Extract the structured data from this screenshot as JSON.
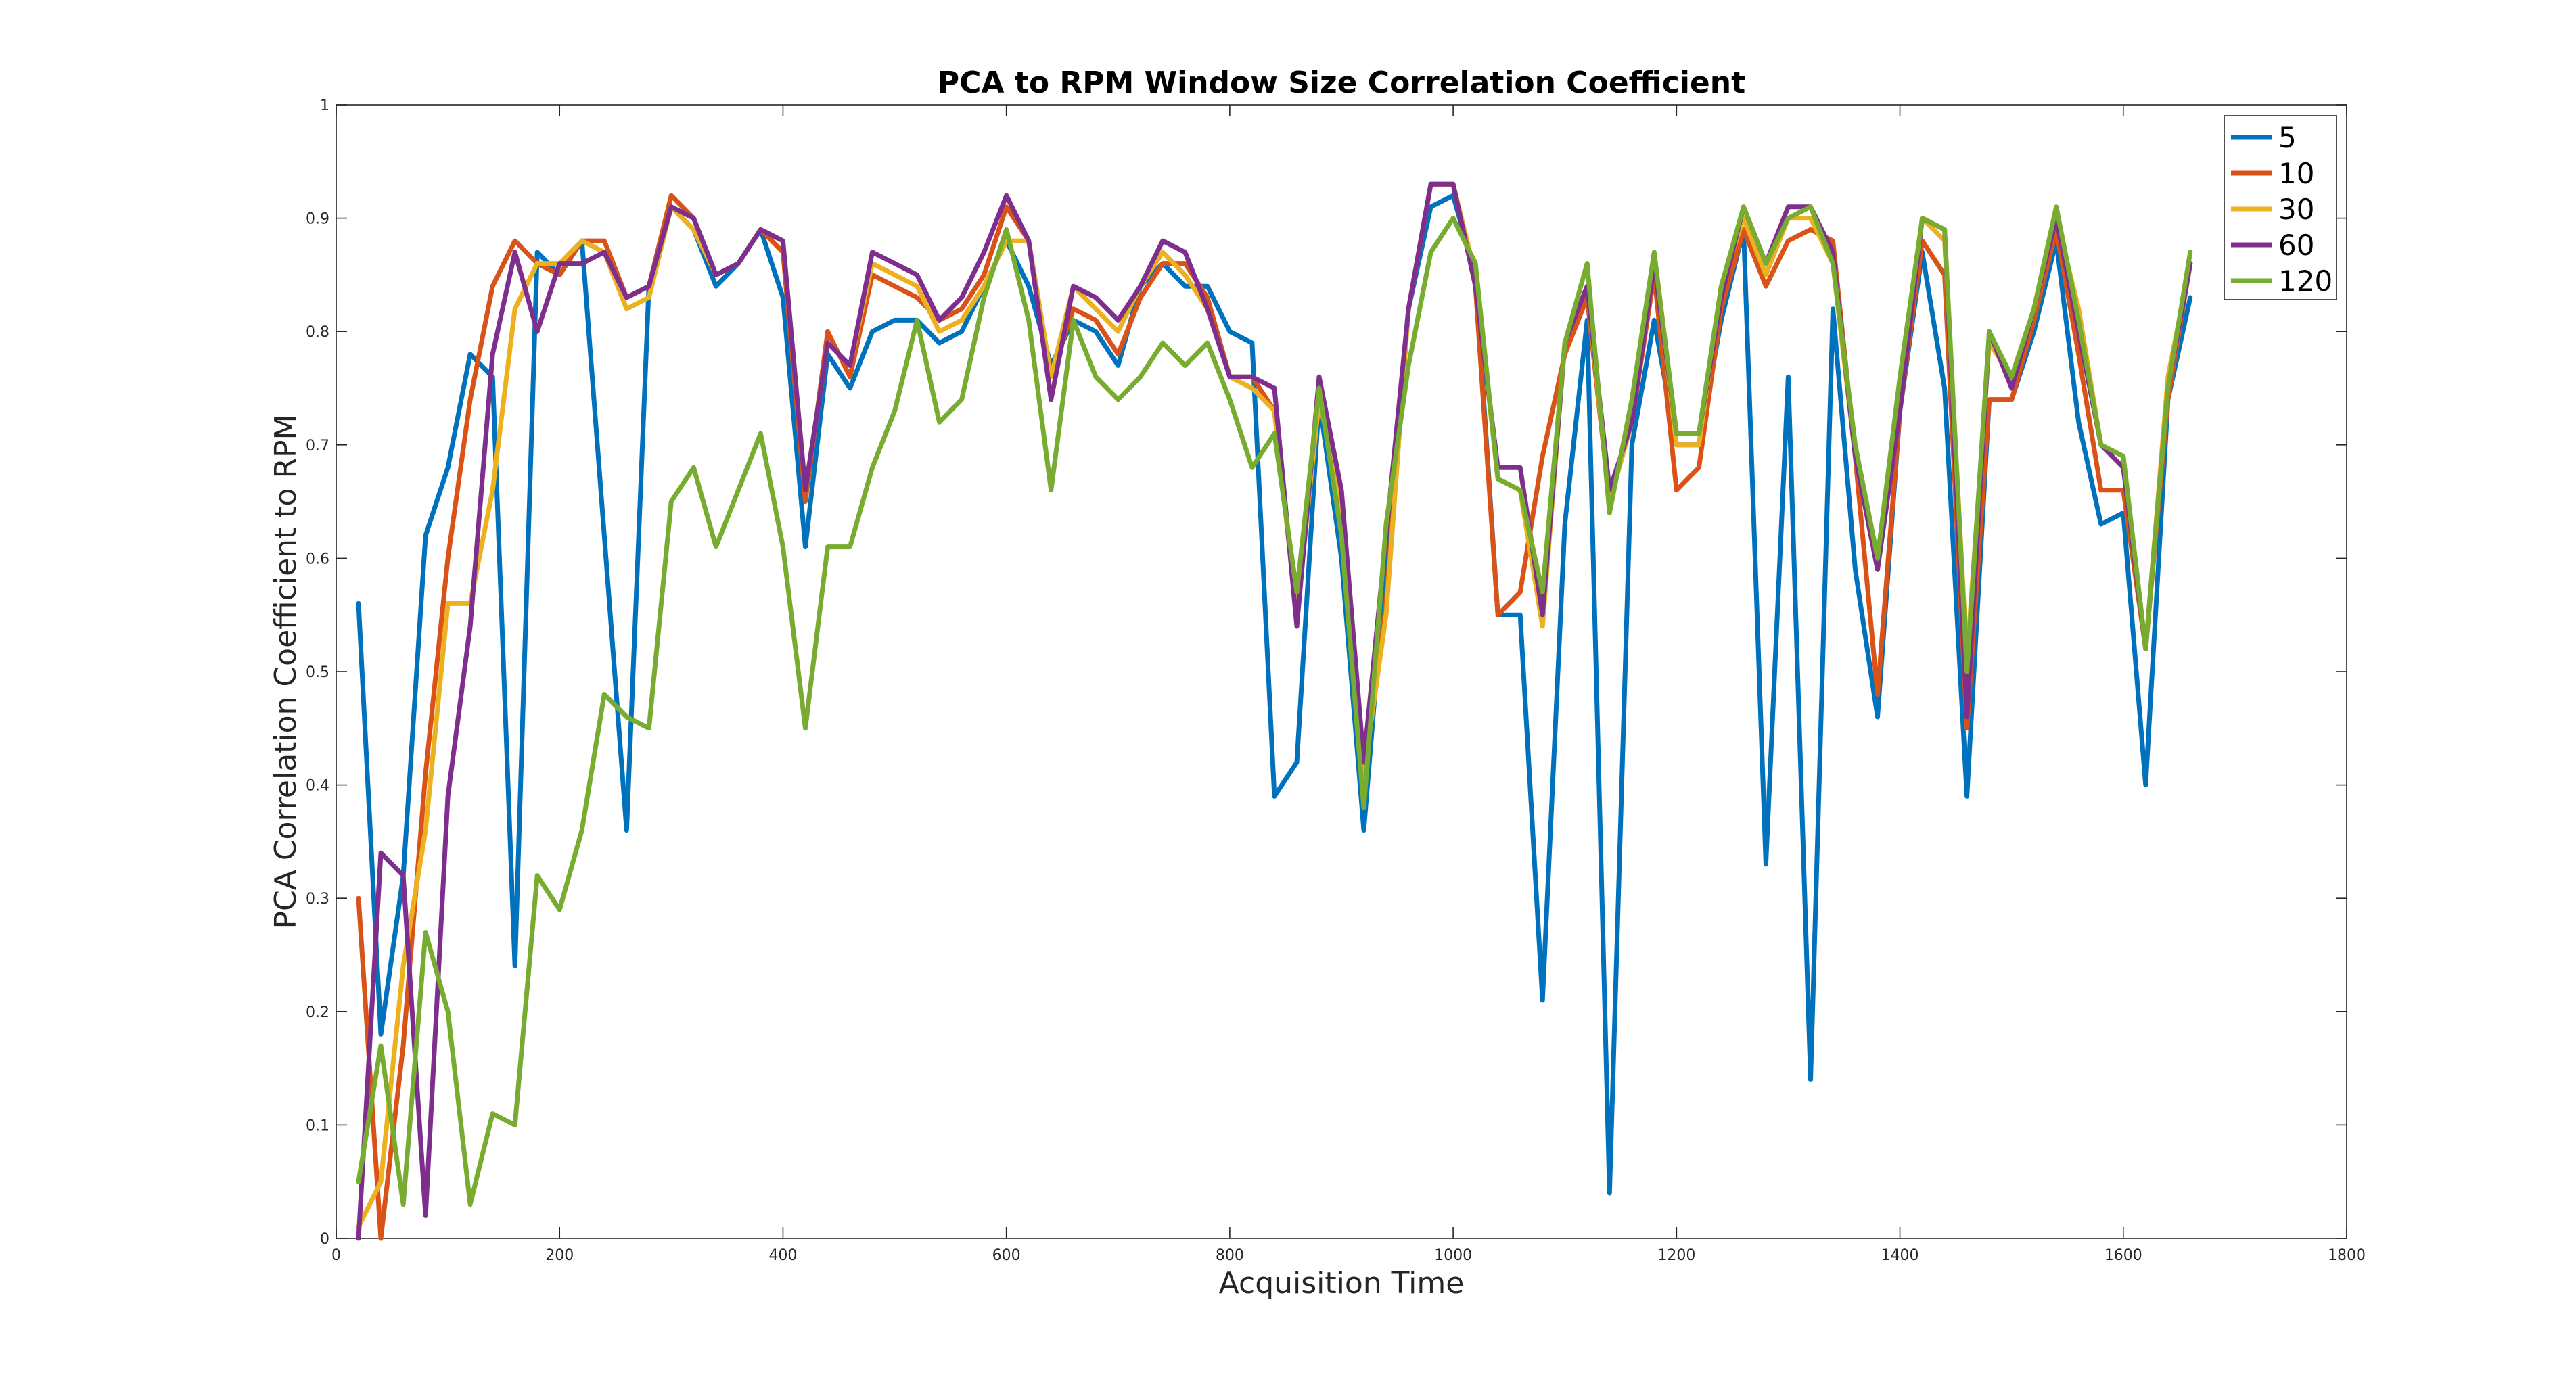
{
  "chart_data": {
    "type": "line",
    "title": "PCA to RPM Window Size Correlation Coefficient",
    "xlabel": "Acquisition Time",
    "ylabel": "PCA Correlation Coefficient to RPM",
    "xlim": [
      0,
      1800
    ],
    "ylim": [
      0,
      1
    ],
    "x_ticks": [
      "0",
      "200",
      "400",
      "600",
      "800",
      "1000",
      "1200",
      "1400",
      "1600",
      "1800"
    ],
    "y_ticks": [
      "0",
      "0.1",
      "0.2",
      "0.3",
      "0.4",
      "0.5",
      "0.6",
      "0.7",
      "0.8",
      "0.9",
      "1"
    ],
    "grid": false,
    "legend_position": "top-right",
    "x": [
      20,
      40,
      60,
      80,
      100,
      120,
      140,
      160,
      180,
      200,
      220,
      240,
      260,
      280,
      300,
      320,
      340,
      360,
      380,
      400,
      420,
      440,
      460,
      480,
      500,
      520,
      540,
      560,
      580,
      600,
      620,
      640,
      660,
      680,
      700,
      720,
      740,
      760,
      780,
      800,
      820,
      840,
      860,
      880,
      900,
      920,
      940,
      960,
      980,
      1000,
      1020,
      1040,
      1060,
      1080,
      1100,
      1120,
      1140,
      1160,
      1180,
      1200,
      1220,
      1240,
      1260,
      1280,
      1300,
      1320,
      1340,
      1360,
      1380,
      1400,
      1420,
      1440,
      1460,
      1480,
      1500,
      1520,
      1540,
      1560,
      1580,
      1600,
      1620,
      1640,
      1660
    ],
    "series": [
      {
        "name": "5",
        "color": "#0072BD",
        "values": [
          0.56,
          0.18,
          0.32,
          0.62,
          0.68,
          0.78,
          0.76,
          0.24,
          0.87,
          0.85,
          0.88,
          0.62,
          0.36,
          0.84,
          0.91,
          0.89,
          0.84,
          0.86,
          0.89,
          0.83,
          0.61,
          0.78,
          0.75,
          0.8,
          0.81,
          0.81,
          0.79,
          0.8,
          0.84,
          0.88,
          0.84,
          0.77,
          0.81,
          0.8,
          0.77,
          0.84,
          0.86,
          0.84,
          0.84,
          0.8,
          0.79,
          0.39,
          0.42,
          0.74,
          0.6,
          0.36,
          0.6,
          0.82,
          0.91,
          0.92,
          0.85,
          0.55,
          0.55,
          0.21,
          0.63,
          0.81,
          0.04,
          0.7,
          0.81,
          0.7,
          0.7,
          0.81,
          0.89,
          0.33,
          0.76,
          0.14,
          0.82,
          0.59,
          0.46,
          0.73,
          0.87,
          0.75,
          0.39,
          0.74,
          0.74,
          0.8,
          0.88,
          0.72,
          0.63,
          0.64,
          0.4,
          0.74,
          0.83
        ]
      },
      {
        "name": "10",
        "color": "#D95319",
        "values": [
          0.3,
          0.0,
          0.17,
          0.41,
          0.6,
          0.74,
          0.84,
          0.88,
          0.86,
          0.85,
          0.88,
          0.88,
          0.83,
          0.84,
          0.92,
          0.9,
          0.85,
          0.86,
          0.89,
          0.87,
          0.65,
          0.8,
          0.76,
          0.85,
          0.84,
          0.83,
          0.81,
          0.82,
          0.85,
          0.91,
          0.88,
          0.76,
          0.82,
          0.81,
          0.78,
          0.83,
          0.86,
          0.86,
          0.83,
          0.76,
          0.76,
          0.73,
          0.55,
          0.75,
          0.64,
          0.41,
          0.56,
          0.82,
          0.93,
          0.93,
          0.84,
          0.55,
          0.57,
          0.69,
          0.78,
          0.83,
          0.65,
          0.72,
          0.85,
          0.66,
          0.68,
          0.82,
          0.89,
          0.84,
          0.88,
          0.89,
          0.88,
          0.69,
          0.48,
          0.73,
          0.88,
          0.85,
          0.45,
          0.74,
          0.74,
          0.81,
          0.89,
          0.78,
          0.66,
          0.66,
          0.52,
          0.74,
          0.86
        ]
      },
      {
        "name": "30",
        "color": "#EDB120",
        "values": [
          0.01,
          0.05,
          0.24,
          0.36,
          0.56,
          0.56,
          0.66,
          0.82,
          0.86,
          0.86,
          0.88,
          0.87,
          0.82,
          0.83,
          0.91,
          0.89,
          0.85,
          0.86,
          0.89,
          0.88,
          0.66,
          0.79,
          0.77,
          0.86,
          0.85,
          0.84,
          0.8,
          0.81,
          0.84,
          0.88,
          0.88,
          0.76,
          0.84,
          0.82,
          0.8,
          0.84,
          0.87,
          0.85,
          0.82,
          0.76,
          0.75,
          0.73,
          0.55,
          0.74,
          0.65,
          0.41,
          0.55,
          0.82,
          0.93,
          0.93,
          0.85,
          0.67,
          0.66,
          0.54,
          0.79,
          0.84,
          0.65,
          0.72,
          0.87,
          0.7,
          0.7,
          0.84,
          0.9,
          0.85,
          0.9,
          0.9,
          0.86,
          0.69,
          0.59,
          0.74,
          0.9,
          0.88,
          0.51,
          0.79,
          0.76,
          0.82,
          0.9,
          0.82,
          0.7,
          0.69,
          0.52,
          0.76,
          0.86
        ]
      },
      {
        "name": "60",
        "color": "#7E2F8E",
        "values": [
          0.0,
          0.34,
          0.32,
          0.02,
          0.39,
          0.54,
          0.78,
          0.87,
          0.8,
          0.86,
          0.86,
          0.87,
          0.83,
          0.84,
          0.91,
          0.9,
          0.85,
          0.86,
          0.89,
          0.88,
          0.66,
          0.79,
          0.77,
          0.87,
          0.86,
          0.85,
          0.81,
          0.83,
          0.87,
          0.92,
          0.88,
          0.74,
          0.84,
          0.83,
          0.81,
          0.84,
          0.88,
          0.87,
          0.82,
          0.76,
          0.76,
          0.75,
          0.54,
          0.76,
          0.66,
          0.42,
          0.62,
          0.82,
          0.93,
          0.93,
          0.84,
          0.68,
          0.68,
          0.55,
          0.79,
          0.84,
          0.66,
          0.72,
          0.86,
          0.71,
          0.71,
          0.83,
          0.91,
          0.86,
          0.91,
          0.91,
          0.87,
          0.69,
          0.59,
          0.73,
          0.9,
          0.89,
          0.46,
          0.8,
          0.75,
          0.82,
          0.9,
          0.8,
          0.7,
          0.68,
          0.52,
          0.75,
          0.86
        ]
      },
      {
        "name": "120",
        "color": "#77AC30",
        "values": [
          0.05,
          0.17,
          0.03,
          0.27,
          0.2,
          0.03,
          0.11,
          0.1,
          0.32,
          0.29,
          0.36,
          0.48,
          0.46,
          0.45,
          0.65,
          0.68,
          0.61,
          0.66,
          0.71,
          0.61,
          0.45,
          0.61,
          0.61,
          0.68,
          0.73,
          0.81,
          0.72,
          0.74,
          0.83,
          0.89,
          0.81,
          0.66,
          0.81,
          0.76,
          0.74,
          0.76,
          0.79,
          0.77,
          0.79,
          0.74,
          0.68,
          0.71,
          0.57,
          0.75,
          0.62,
          0.38,
          0.63,
          0.77,
          0.87,
          0.9,
          0.86,
          0.67,
          0.66,
          0.57,
          0.79,
          0.86,
          0.64,
          0.74,
          0.87,
          0.71,
          0.71,
          0.84,
          0.91,
          0.86,
          0.9,
          0.91,
          0.86,
          0.7,
          0.6,
          0.76,
          0.9,
          0.89,
          0.5,
          0.8,
          0.76,
          0.82,
          0.91,
          0.81,
          0.7,
          0.69,
          0.52,
          0.75,
          0.87
        ]
      }
    ]
  }
}
